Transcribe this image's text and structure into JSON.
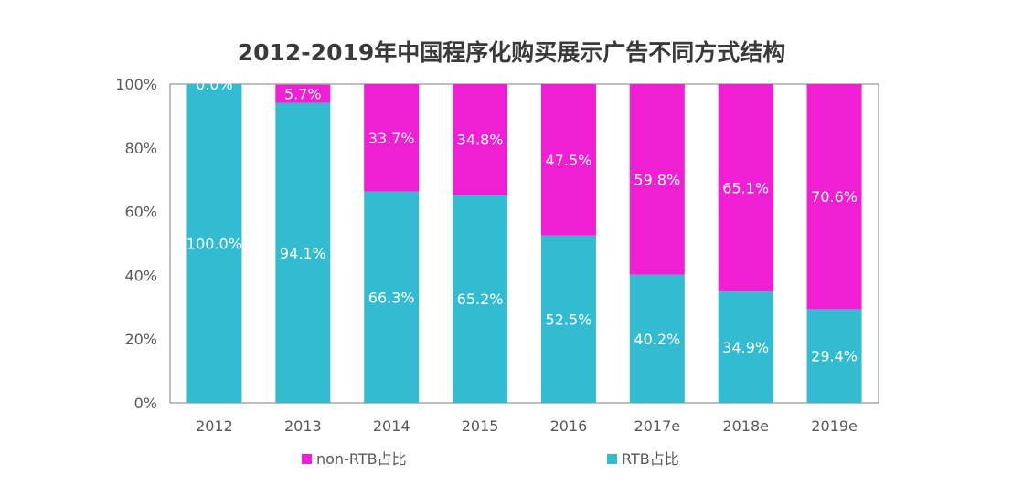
{
  "chart_data": {
    "type": "bar",
    "stacked": true,
    "title": "2012-2019年中国程序化购买展示广告不同方式结构",
    "xlabel": "",
    "ylabel": "",
    "ylim": [
      0,
      100
    ],
    "yticks": [
      "0%",
      "20%",
      "40%",
      "60%",
      "80%",
      "100%"
    ],
    "categories": [
      "2012",
      "2013",
      "2014",
      "2015",
      "2016",
      "2017e",
      "2018e",
      "2019e"
    ],
    "series": [
      {
        "name": "RTB占比",
        "color": "#33bcd1",
        "values": [
          100.0,
          94.1,
          66.3,
          65.2,
          52.5,
          40.2,
          34.9,
          29.4
        ],
        "labels": [
          "100.0%",
          "94.1%",
          "66.3%",
          "65.2%",
          "52.5%",
          "40.2%",
          "34.9%",
          "29.4%"
        ]
      },
      {
        "name": "non-RTB占比",
        "color": "#f01fd3",
        "values": [
          0.0,
          5.7,
          33.7,
          34.8,
          47.5,
          59.8,
          65.1,
          70.6
        ],
        "labels": [
          "0.0%",
          "5.7%",
          "33.7%",
          "34.8%",
          "47.5%",
          "59.8%",
          "65.1%",
          "70.6%"
        ]
      }
    ],
    "legend": {
      "placement": "bottom",
      "order": [
        "non-RTB占比",
        "RTB占比"
      ]
    },
    "grid": false
  }
}
